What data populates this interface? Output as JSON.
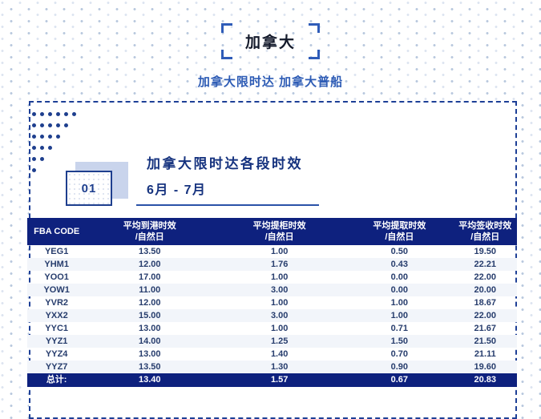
{
  "header": {
    "title": "加拿大",
    "subtitle": "加拿大限时达 加拿大普船"
  },
  "section": {
    "badge_number": "01",
    "title": "加拿大限时达各段时效",
    "period": "6月 - 7月"
  },
  "table": {
    "headers": [
      {
        "top": "FBA CODE",
        "bottom": ""
      },
      {
        "top": "平均到港时效",
        "bottom": "/自然日"
      },
      {
        "top": "平均提柜时效",
        "bottom": "/自然日"
      },
      {
        "top": "平均提取时效",
        "bottom": "/自然日"
      },
      {
        "top": "平均签收时效",
        "bottom": "/自然日"
      }
    ],
    "rows": [
      [
        "YEG1",
        "13.50",
        "1.00",
        "0.50",
        "19.50"
      ],
      [
        "YHM1",
        "12.00",
        "1.76",
        "0.43",
        "22.21"
      ],
      [
        "YOO1",
        "17.00",
        "1.00",
        "0.00",
        "22.00"
      ],
      [
        "YOW1",
        "11.00",
        "3.00",
        "0.00",
        "20.00"
      ],
      [
        "YVR2",
        "12.00",
        "1.00",
        "1.00",
        "18.67"
      ],
      [
        "YXX2",
        "15.00",
        "3.00",
        "1.00",
        "22.00"
      ],
      [
        "YYC1",
        "13.00",
        "1.00",
        "0.71",
        "21.67"
      ],
      [
        "YYZ1",
        "14.00",
        "1.25",
        "1.50",
        "21.50"
      ],
      [
        "YYZ4",
        "13.00",
        "1.40",
        "0.70",
        "21.11"
      ],
      [
        "YYZ7",
        "13.50",
        "1.30",
        "0.90",
        "19.60"
      ]
    ],
    "total_row": [
      "总计:",
      "13.40",
      "1.57",
      "0.67",
      "20.83"
    ]
  },
  "colors": {
    "table_header_bg": "#0e217e",
    "accent_blue": "#2e5cb5",
    "dark_navy": "#16337f",
    "dashed_border": "#1d3f96",
    "badge_back": "#c9d4ec"
  },
  "chart_data": {
    "type": "table",
    "title": "加拿大限时达各段时效 6月 - 7月",
    "columns": [
      "FBA CODE",
      "平均到港时效/自然日",
      "平均提柜时效/自然日",
      "平均提取时效/自然日",
      "平均签收时效/自然日"
    ],
    "rows": [
      {
        "fba_code": "YEG1",
        "arrival": 13.5,
        "pickup_container": 1.0,
        "retrieval": 0.5,
        "signed": 19.5
      },
      {
        "fba_code": "YHM1",
        "arrival": 12.0,
        "pickup_container": 1.76,
        "retrieval": 0.43,
        "signed": 22.21
      },
      {
        "fba_code": "YOO1",
        "arrival": 17.0,
        "pickup_container": 1.0,
        "retrieval": 0.0,
        "signed": 22.0
      },
      {
        "fba_code": "YOW1",
        "arrival": 11.0,
        "pickup_container": 3.0,
        "retrieval": 0.0,
        "signed": 20.0
      },
      {
        "fba_code": "YVR2",
        "arrival": 12.0,
        "pickup_container": 1.0,
        "retrieval": 1.0,
        "signed": 18.67
      },
      {
        "fba_code": "YXX2",
        "arrival": 15.0,
        "pickup_container": 3.0,
        "retrieval": 1.0,
        "signed": 22.0
      },
      {
        "fba_code": "YYC1",
        "arrival": 13.0,
        "pickup_container": 1.0,
        "retrieval": 0.71,
        "signed": 21.67
      },
      {
        "fba_code": "YYZ1",
        "arrival": 14.0,
        "pickup_container": 1.25,
        "retrieval": 1.5,
        "signed": 21.5
      },
      {
        "fba_code": "YYZ4",
        "arrival": 13.0,
        "pickup_container": 1.4,
        "retrieval": 0.7,
        "signed": 21.11
      },
      {
        "fba_code": "YYZ7",
        "arrival": 13.5,
        "pickup_container": 1.3,
        "retrieval": 0.9,
        "signed": 19.6
      }
    ],
    "total": {
      "label": "总计:",
      "arrival": 13.4,
      "pickup_container": 1.57,
      "retrieval": 0.67,
      "signed": 20.83
    }
  }
}
